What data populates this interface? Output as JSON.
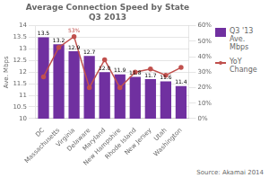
{
  "chart_data": {
    "type": "bar",
    "title": "Average Connection Speed by State\nQ3 2013",
    "categories": [
      "DC",
      "Massachusetts",
      "Virginia",
      "Delaware",
      "Maryland",
      "New Hampshire",
      "Rhode Island",
      "New Jersey",
      "Utah",
      "Washington"
    ],
    "series": [
      {
        "name": "Q3 '13\nAve.\nMbps",
        "type": "bar",
        "color": "#7030A0",
        "values": [
          13.5,
          13.2,
          12.9,
          12.7,
          12.0,
          11.9,
          11.8,
          11.7,
          11.6,
          11.4
        ],
        "data_labels": true,
        "value_labels": [
          "13.5",
          "13.2",
          "12.9",
          "12.7",
          "12.0",
          "11.9",
          "11.8",
          "11.7",
          "11.6",
          "11.4"
        ]
      },
      {
        "name": "YoY\nChange",
        "type": "line",
        "color": "#C0504D",
        "marker": "circle",
        "axis": "y2",
        "values": [
          0.27,
          0.46,
          0.53,
          0.2,
          0.38,
          0.2,
          0.3,
          0.32,
          0.28,
          0.33
        ]
      }
    ],
    "ylabel": "Ave. Mbps",
    "ylim": [
      10,
      14
    ],
    "yticks": [
      10,
      10.5,
      11,
      11.5,
      12,
      12.5,
      13,
      13.5,
      14
    ],
    "y2lim": [
      0.0,
      0.6
    ],
    "y2ticks": [
      {
        "value": 0.0,
        "label": "0%"
      },
      {
        "value": 0.1,
        "label": "10%"
      },
      {
        "value": 0.2,
        "label": "20%"
      },
      {
        "value": 0.3,
        "label": "30%"
      },
      {
        "value": 0.4,
        "label": "40%"
      },
      {
        "value": 0.5,
        "label": "50%"
      },
      {
        "value": 0.6,
        "label": "60%"
      }
    ],
    "grid": true,
    "legend": "right",
    "annotations": [
      {
        "text": "53%",
        "x": "Virginia",
        "y": 0.53,
        "axis": "y2"
      }
    ],
    "source": "Source: Akamai 2014"
  }
}
